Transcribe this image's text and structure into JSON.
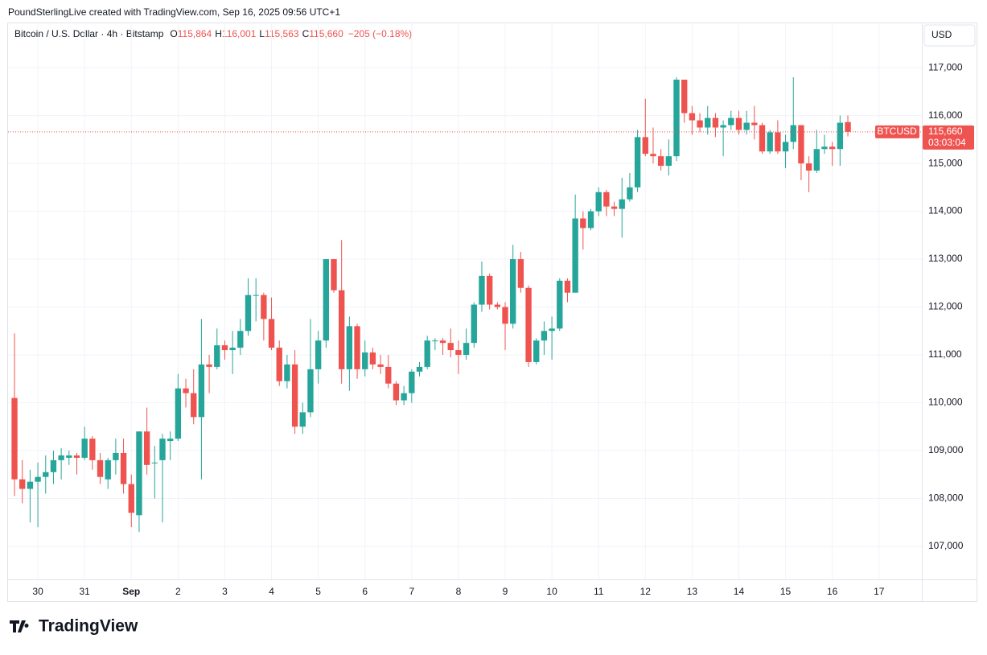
{
  "chart_data": {
    "type": "candlestick",
    "credit": "PoundSterlingLive created with TradingView.com, Sep 16, 2025 09:56 UTC+1",
    "title": "Bitcoin / U.S. Dollar · 4h · Bitstamp",
    "ohlc_header": [
      {
        "label": "O",
        "value": "115,864"
      },
      {
        "label": "H",
        "value": "116,001"
      },
      {
        "label": "L",
        "value": "115,563"
      },
      {
        "label": "C",
        "value": "115,660"
      }
    ],
    "change": "−205 (−0.18%)",
    "currency": "USD",
    "brand": "TradingView",
    "up_color": "#26a69a",
    "down_color": "#ef5350",
    "open": [
      110100,
      108400,
      108200,
      108350,
      108450,
      108550,
      108800,
      108850,
      108900,
      108850,
      109250,
      108800,
      108400,
      108800,
      108950,
      108300,
      107650,
      109400,
      108750,
      108800,
      109200,
      109250,
      110300,
      110200,
      109700,
      110800,
      110750,
      111200,
      111100,
      111150,
      111500,
      112250,
      112250,
      111750,
      111150,
      110450,
      110800,
      109500,
      109800,
      110700,
      111300,
      113000,
      112350,
      110700,
      111600,
      110700,
      111050,
      110800,
      110750,
      110400,
      110050,
      110200,
      110650,
      110750,
      111300,
      111300,
      111250,
      111100,
      111000,
      111250,
      112050,
      112650,
      112050,
      112000,
      111650,
      113000,
      112400,
      110850,
      111300,
      111500,
      111550,
      112550,
      112300,
      113850,
      113650,
      114000,
      114400,
      114100,
      114050,
      114250,
      114500,
      115550,
      115200,
      115150,
      114950,
      115150,
      116750,
      116050,
      115900,
      115750,
      115950,
      115750,
      115800,
      115950,
      115700,
      115850,
      115800,
      115250,
      115650,
      115250,
      115450,
      115800,
      115000,
      114850,
      115300,
      115350,
      115300,
      115864
    ],
    "high": [
      111450,
      108800,
      108600,
      108750,
      108900,
      109000,
      109050,
      109000,
      108950,
      109500,
      109300,
      108950,
      108850,
      109250,
      109250,
      108500,
      109400,
      109900,
      109100,
      109350,
      109400,
      110600,
      110500,
      110700,
      111750,
      111000,
      111550,
      111300,
      111500,
      111750,
      112600,
      112600,
      112300,
      112200,
      111300,
      111000,
      111100,
      110000,
      111750,
      111500,
      113000,
      113000,
      113400,
      111800,
      111650,
      111300,
      111150,
      111000,
      111000,
      110450,
      110350,
      110700,
      110850,
      111400,
      111350,
      111350,
      111550,
      111300,
      111550,
      112100,
      112950,
      112700,
      112100,
      112100,
      113300,
      113150,
      112450,
      111350,
      111700,
      111800,
      112600,
      112600,
      114350,
      114000,
      114050,
      114500,
      114450,
      114200,
      114700,
      114800,
      115700,
      116350,
      115750,
      115300,
      115500,
      116800,
      116750,
      116200,
      116050,
      116200,
      116050,
      115900,
      116100,
      116100,
      116100,
      116200,
      115850,
      115700,
      115900,
      115600,
      116800,
      115800,
      115150,
      115700,
      115600,
      115450,
      116000,
      116001
    ],
    "low": [
      108050,
      107900,
      107500,
      107400,
      108100,
      108300,
      108400,
      108700,
      108500,
      108800,
      108600,
      108300,
      108200,
      108500,
      108100,
      107400,
      107300,
      108500,
      108000,
      107500,
      108800,
      109200,
      109900,
      109550,
      108400,
      110200,
      110700,
      110900,
      110600,
      111000,
      111400,
      111700,
      111300,
      111100,
      110350,
      110300,
      109350,
      109350,
      109700,
      110400,
      111150,
      112300,
      110400,
      110250,
      110500,
      110550,
      110700,
      110600,
      110300,
      109950,
      109950,
      110000,
      110550,
      110700,
      111100,
      111000,
      110950,
      110600,
      110900,
      111150,
      111900,
      111950,
      111950,
      111100,
      111550,
      112300,
      110750,
      110800,
      111000,
      110900,
      111500,
      112100,
      112300,
      113200,
      113600,
      113900,
      113900,
      113900,
      113450,
      114200,
      114400,
      115150,
      115000,
      114850,
      114750,
      115050,
      115850,
      115600,
      115650,
      115600,
      115550,
      115150,
      115700,
      115600,
      115600,
      115500,
      115200,
      115200,
      115200,
      114900,
      115300,
      114650,
      114400,
      114800,
      115200,
      114950,
      114950,
      115563
    ],
    "close": [
      108400,
      108200,
      108350,
      108450,
      108550,
      108800,
      108900,
      108900,
      108850,
      109250,
      108800,
      108450,
      108800,
      108950,
      108300,
      107700,
      109400,
      108700,
      108750,
      109250,
      109250,
      110300,
      110200,
      109700,
      110800,
      110750,
      111200,
      111100,
      111150,
      111500,
      112250,
      112250,
      111750,
      111150,
      110450,
      110800,
      109500,
      109800,
      110700,
      111300,
      113000,
      112350,
      110700,
      111600,
      110700,
      111050,
      110800,
      110750,
      110400,
      110050,
      110200,
      110650,
      110750,
      111300,
      111300,
      111250,
      111100,
      111000,
      111250,
      112050,
      112650,
      112050,
      112000,
      111650,
      113000,
      112400,
      110850,
      111300,
      111500,
      111550,
      112550,
      112300,
      113850,
      113650,
      114000,
      114400,
      114100,
      114050,
      114250,
      114500,
      115550,
      115200,
      115150,
      114950,
      115150,
      116750,
      116050,
      115900,
      115750,
      115950,
      115750,
      115800,
      115950,
      115700,
      115850,
      115800,
      115250,
      115650,
      115250,
      115450,
      115800,
      115000,
      114850,
      115300,
      115350,
      115300,
      115850,
      115660
    ],
    "xlim": [
      -0.83,
      116.5
    ],
    "xticks": [
      {
        "value": 3,
        "label": "30"
      },
      {
        "value": 9,
        "label": "31"
      },
      {
        "value": 15,
        "label": "Sep"
      },
      {
        "value": 21,
        "label": "2"
      },
      {
        "value": 27,
        "label": "3"
      },
      {
        "value": 33,
        "label": "4"
      },
      {
        "value": 39,
        "label": "5"
      },
      {
        "value": 45,
        "label": "6"
      },
      {
        "value": 51,
        "label": "7"
      },
      {
        "value": 57,
        "label": "8"
      },
      {
        "value": 63,
        "label": "9"
      },
      {
        "value": 69,
        "label": "10"
      },
      {
        "value": 75,
        "label": "11"
      },
      {
        "value": 81,
        "label": "12"
      },
      {
        "value": 87,
        "label": "13"
      },
      {
        "value": 93,
        "label": "14"
      },
      {
        "value": 99,
        "label": "15"
      },
      {
        "value": 105,
        "label": "16"
      },
      {
        "value": 111,
        "label": "17"
      }
    ],
    "ylim": [
      106310,
      117910
    ],
    "yticks": [
      {
        "value": 107000,
        "label": "107,000"
      },
      {
        "value": 108000,
        "label": "108,000"
      },
      {
        "value": 109000,
        "label": "109,000"
      },
      {
        "value": 110000,
        "label": "110,000"
      },
      {
        "value": 111000,
        "label": "111,000"
      },
      {
        "value": 112000,
        "label": "112,000"
      },
      {
        "value": 113000,
        "label": "113,000"
      },
      {
        "value": 114000,
        "label": "114,000"
      },
      {
        "value": 115000,
        "label": "115,000"
      },
      {
        "value": 116000,
        "label": "116,000"
      },
      {
        "value": 117000,
        "label": "117,000"
      }
    ],
    "grid": true,
    "last_price": {
      "value": 115660,
      "label": "115,660",
      "symbol": "BTCUSD",
      "countdown": "03:03:04"
    }
  }
}
